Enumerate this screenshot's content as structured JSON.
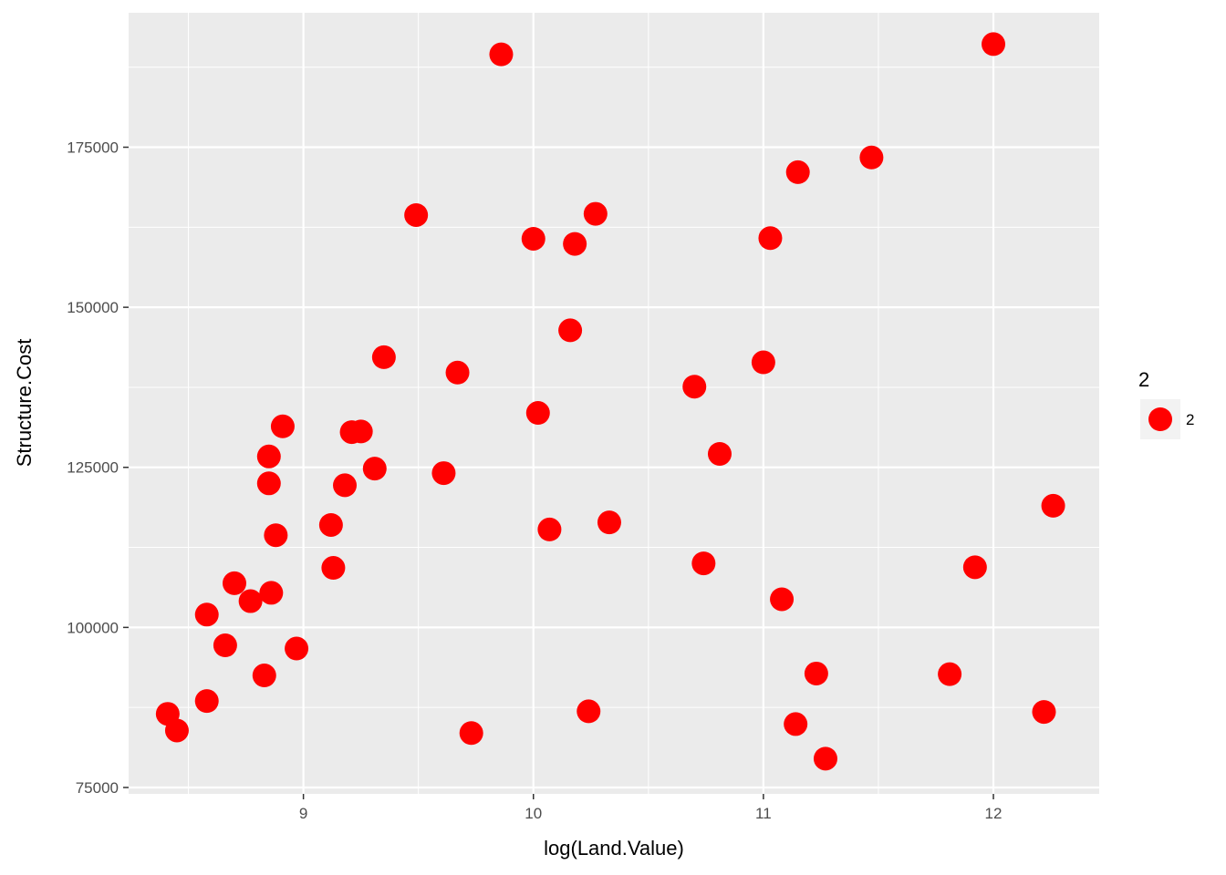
{
  "chart_data": {
    "type": "scatter",
    "title": "",
    "xlabel": "log(Land.Value)",
    "ylabel": "Structure.Cost",
    "xlim": [
      8.24,
      12.46
    ],
    "ylim": [
      74000,
      196000
    ],
    "x_ticks": [
      9,
      10,
      11,
      12
    ],
    "x_tick_labels": [
      "9",
      "10",
      "11",
      "12"
    ],
    "y_ticks": [
      75000,
      100000,
      125000,
      150000,
      175000
    ],
    "y_tick_labels": [
      "75000",
      "100000",
      "125000",
      "150000",
      "175000"
    ],
    "grid": true,
    "panel_background": "#ebebeb",
    "grid_color": "#ffffff",
    "point_color": "#ff0000",
    "legend": {
      "title": "2",
      "label": "2",
      "position": "right"
    },
    "series": [
      {
        "name": "2",
        "color": "#ff0000",
        "points": [
          {
            "x": 8.41,
            "y": 86500
          },
          {
            "x": 8.45,
            "y": 83900
          },
          {
            "x": 8.58,
            "y": 102000
          },
          {
            "x": 8.58,
            "y": 88500
          },
          {
            "x": 8.66,
            "y": 97200
          },
          {
            "x": 8.7,
            "y": 106900
          },
          {
            "x": 8.77,
            "y": 104100
          },
          {
            "x": 8.83,
            "y": 92500
          },
          {
            "x": 8.85,
            "y": 126700
          },
          {
            "x": 8.85,
            "y": 122500
          },
          {
            "x": 8.86,
            "y": 105400
          },
          {
            "x": 8.88,
            "y": 114400
          },
          {
            "x": 8.91,
            "y": 131400
          },
          {
            "x": 8.97,
            "y": 96700
          },
          {
            "x": 9.12,
            "y": 116000
          },
          {
            "x": 9.13,
            "y": 109300
          },
          {
            "x": 9.18,
            "y": 122200
          },
          {
            "x": 9.21,
            "y": 130500
          },
          {
            "x": 9.25,
            "y": 130600
          },
          {
            "x": 9.31,
            "y": 124800
          },
          {
            "x": 9.35,
            "y": 142200
          },
          {
            "x": 9.49,
            "y": 164400
          },
          {
            "x": 9.61,
            "y": 124100
          },
          {
            "x": 9.67,
            "y": 139800
          },
          {
            "x": 9.73,
            "y": 83500
          },
          {
            "x": 9.86,
            "y": 189500
          },
          {
            "x": 10.0,
            "y": 160700
          },
          {
            "x": 10.02,
            "y": 133500
          },
          {
            "x": 10.07,
            "y": 115300
          },
          {
            "x": 10.16,
            "y": 146400
          },
          {
            "x": 10.18,
            "y": 159900
          },
          {
            "x": 10.24,
            "y": 86900
          },
          {
            "x": 10.27,
            "y": 164600
          },
          {
            "x": 10.33,
            "y": 116400
          },
          {
            "x": 10.7,
            "y": 137600
          },
          {
            "x": 10.74,
            "y": 110000
          },
          {
            "x": 10.81,
            "y": 127100
          },
          {
            "x": 11.0,
            "y": 141400
          },
          {
            "x": 11.03,
            "y": 160800
          },
          {
            "x": 11.08,
            "y": 104400
          },
          {
            "x": 11.14,
            "y": 84900
          },
          {
            "x": 11.15,
            "y": 171100
          },
          {
            "x": 11.23,
            "y": 92800
          },
          {
            "x": 11.27,
            "y": 79500
          },
          {
            "x": 11.47,
            "y": 173400
          },
          {
            "x": 11.81,
            "y": 92700
          },
          {
            "x": 11.92,
            "y": 109400
          },
          {
            "x": 12.0,
            "y": 191100
          },
          {
            "x": 12.22,
            "y": 86800
          },
          {
            "x": 12.26,
            "y": 119000
          }
        ]
      }
    ]
  }
}
